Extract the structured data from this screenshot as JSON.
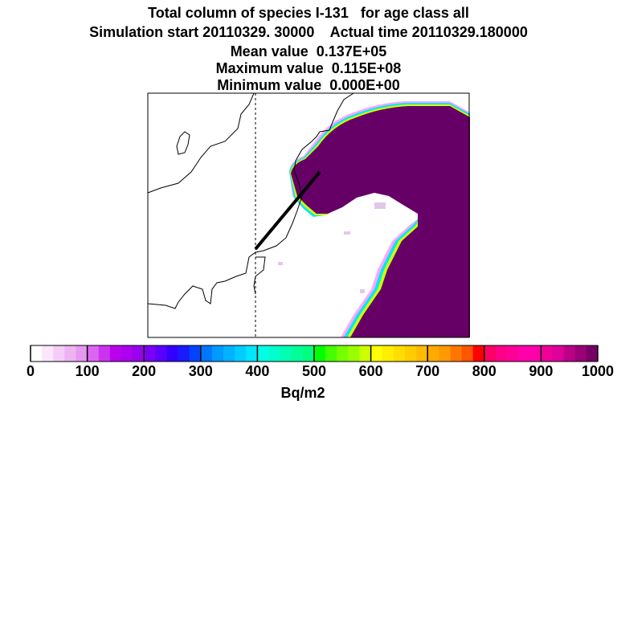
{
  "header": {
    "line1": "Total column of species I-131   for age class all",
    "line2": "Simulation start 20110329. 30000    Actual time 20110329.180000",
    "line3": "Mean value  0.137E+05",
    "line4": "Maximum value  0.115E+08",
    "line5": "Minimum value  0.000E+00"
  },
  "colorbar": {
    "unit": "Bq/m2",
    "ticks": [
      "0",
      "100",
      "200",
      "300",
      "400",
      "500",
      "600",
      "700",
      "800",
      "900",
      "1000"
    ],
    "colors": [
      "#ffffff",
      "#fbe6fb",
      "#f5ccf5",
      "#eeb3f2",
      "#e699f0",
      "#dc66f0",
      "#cc33f0",
      "#bb00ee",
      "#aa00ee",
      "#9900ee",
      "#7a00f5",
      "#5a00ff",
      "#3300ff",
      "#1a1aff",
      "#0044ff",
      "#0077ff",
      "#0099ff",
      "#00b2ff",
      "#00ccff",
      "#00e6ff",
      "#00ffe6",
      "#00ffcc",
      "#00ffb2",
      "#00ff99",
      "#00ff80",
      "#00ff00",
      "#44ff00",
      "#77ff00",
      "#99ff00",
      "#ccff00",
      "#ffff00",
      "#ffee00",
      "#ffdd00",
      "#ffcc00",
      "#ffbb00",
      "#ffaa00",
      "#ff9900",
      "#ff7700",
      "#ff5500",
      "#ff0000",
      "#ff0066",
      "#ff0088",
      "#ff0099",
      "#ff00aa",
      "#ff00aa",
      "#ee0099",
      "#dd0099",
      "#bb0088",
      "#990077",
      "#770066"
    ]
  },
  "map": {
    "plume_color": "#660066",
    "edge_colors": [
      "#ff00ff",
      "#00e6ff",
      "#ffff00",
      "#00ff00"
    ],
    "coast_color": "#000000",
    "meridian_style": "dashed"
  }
}
